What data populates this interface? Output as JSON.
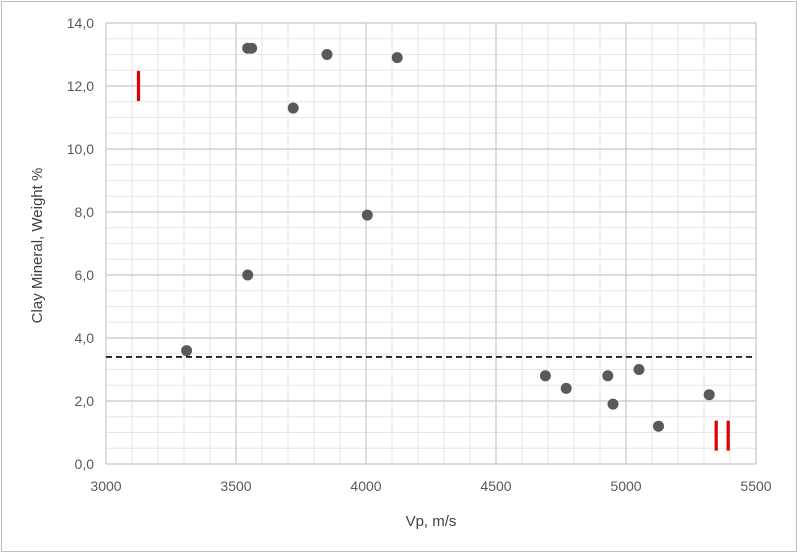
{
  "chart_data": {
    "type": "scatter",
    "title": "",
    "xlabel": "Vp, m/s",
    "ylabel": "Clay Mineral, Weight %",
    "xlim": [
      3000,
      5500
    ],
    "ylim": [
      0,
      14
    ],
    "x_ticks": [
      "3000",
      "3500",
      "4000",
      "4500",
      "5000",
      "5500"
    ],
    "y_ticks": [
      "0,0",
      "2,0",
      "4,0",
      "6,0",
      "8,0",
      "10,0",
      "12,0",
      "14,0"
    ],
    "x_minor_step": 100,
    "y_minor_step": 0.5,
    "grid": true,
    "legend": "none",
    "marker_color": "#595959",
    "points": [
      {
        "x": 3545,
        "y": 13.2
      },
      {
        "x": 3560,
        "y": 13.2
      },
      {
        "x": 3850,
        "y": 13.0
      },
      {
        "x": 4120,
        "y": 12.9
      },
      {
        "x": 3720,
        "y": 11.3
      },
      {
        "x": 4005,
        "y": 7.9
      },
      {
        "x": 3545,
        "y": 6.0
      },
      {
        "x": 3310,
        "y": 3.6
      },
      {
        "x": 4690,
        "y": 2.8
      },
      {
        "x": 4770,
        "y": 2.4
      },
      {
        "x": 4930,
        "y": 2.8
      },
      {
        "x": 4950,
        "y": 1.9
      },
      {
        "x": 5050,
        "y": 3.0
      },
      {
        "x": 5125,
        "y": 1.2
      },
      {
        "x": 5320,
        "y": 2.2
      }
    ],
    "threshold_line": {
      "y": 3.4,
      "style": "dashed",
      "color": "#000000"
    },
    "annotations": [
      {
        "text": "I",
        "x": 3125,
        "y": 12.0,
        "color": "#e00000"
      },
      {
        "text": "II",
        "x": 5370,
        "y": 0.9,
        "color": "#e00000"
      }
    ]
  }
}
